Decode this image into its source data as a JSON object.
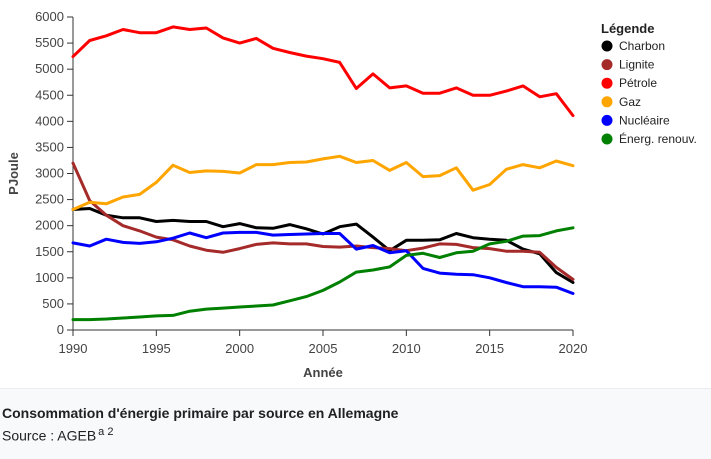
{
  "chart_data": {
    "type": "line",
    "title": "",
    "xlabel": "Année",
    "ylabel": "PJoule",
    "xlim": [
      1990,
      2020
    ],
    "ylim": [
      0,
      6000
    ],
    "xticks": [
      1990,
      1995,
      2000,
      2005,
      2010,
      2015,
      2020
    ],
    "yticks": [
      0,
      500,
      1000,
      1500,
      2000,
      2500,
      3000,
      3500,
      4000,
      4500,
      5000,
      5500,
      6000
    ],
    "xtick_labels": [
      "1990",
      "1995",
      "2000",
      "2005",
      "2010",
      "2015",
      "2020"
    ],
    "ytick_labels": [
      "0",
      "500",
      "1000",
      "1500",
      "2000",
      "2500",
      "3000",
      "3500",
      "4000",
      "4500",
      "5000",
      "5500",
      "6000"
    ],
    "grid": false,
    "legend": {
      "title": "Légende",
      "position": "right"
    },
    "x": [
      1990,
      1991,
      1992,
      1993,
      1994,
      1995,
      1996,
      1997,
      1998,
      1999,
      2000,
      2001,
      2002,
      2003,
      2004,
      2005,
      2006,
      2007,
      2008,
      2009,
      2010,
      2011,
      2012,
      2013,
      2014,
      2015,
      2016,
      2017,
      2018,
      2019,
      2020
    ],
    "series": [
      {
        "name": "Charbon",
        "color": "#000000",
        "values": [
          2310,
          2330,
          2200,
          2150,
          2150,
          2080,
          2100,
          2080,
          2080,
          1980,
          2040,
          1960,
          1950,
          2020,
          1940,
          1840,
          1980,
          2030,
          1780,
          1520,
          1720,
          1720,
          1730,
          1850,
          1770,
          1740,
          1720,
          1550,
          1460,
          1100,
          910
        ]
      },
      {
        "name": "Lignite",
        "color": "#a52a2a",
        "values": [
          3200,
          2480,
          2200,
          2000,
          1900,
          1780,
          1730,
          1610,
          1530,
          1490,
          1560,
          1640,
          1670,
          1650,
          1650,
          1600,
          1590,
          1610,
          1580,
          1560,
          1520,
          1570,
          1650,
          1640,
          1580,
          1560,
          1510,
          1510,
          1490,
          1200,
          970
        ]
      },
      {
        "name": "Pétrole",
        "color": "#ff0000",
        "values": [
          5240,
          5550,
          5640,
          5760,
          5700,
          5700,
          5810,
          5760,
          5790,
          5600,
          5500,
          5590,
          5400,
          5320,
          5250,
          5200,
          5130,
          4630,
          4910,
          4640,
          4680,
          4540,
          4540,
          4640,
          4500,
          4500,
          4580,
          4680,
          4470,
          4530,
          4110
        ]
      },
      {
        "name": "Gaz",
        "color": "#ffa500",
        "values": [
          2310,
          2450,
          2420,
          2550,
          2600,
          2830,
          3160,
          3020,
          3050,
          3040,
          3010,
          3170,
          3170,
          3210,
          3220,
          3280,
          3330,
          3210,
          3250,
          3060,
          3210,
          2940,
          2960,
          3110,
          2680,
          2790,
          3080,
          3170,
          3110,
          3240,
          3150
        ]
      },
      {
        "name": "Nucléaire",
        "color": "#0000ff",
        "values": [
          1670,
          1610,
          1740,
          1680,
          1660,
          1690,
          1760,
          1860,
          1770,
          1860,
          1870,
          1870,
          1820,
          1830,
          1840,
          1850,
          1850,
          1550,
          1620,
          1480,
          1520,
          1180,
          1090,
          1070,
          1060,
          1000,
          910,
          830,
          830,
          820,
          700
        ]
      },
      {
        "name": "Énerg. renouv.",
        "color": "#008000",
        "values": [
          200,
          200,
          210,
          230,
          250,
          270,
          280,
          360,
          400,
          420,
          440,
          460,
          480,
          560,
          640,
          760,
          920,
          1110,
          1150,
          1210,
          1430,
          1470,
          1390,
          1480,
          1510,
          1650,
          1700,
          1800,
          1810,
          1900,
          1960
        ]
      }
    ]
  },
  "caption": {
    "title": "Consommation d'énergie primaire par source en Allemagne",
    "source": "Source : AGEB",
    "refs": "a 2"
  }
}
